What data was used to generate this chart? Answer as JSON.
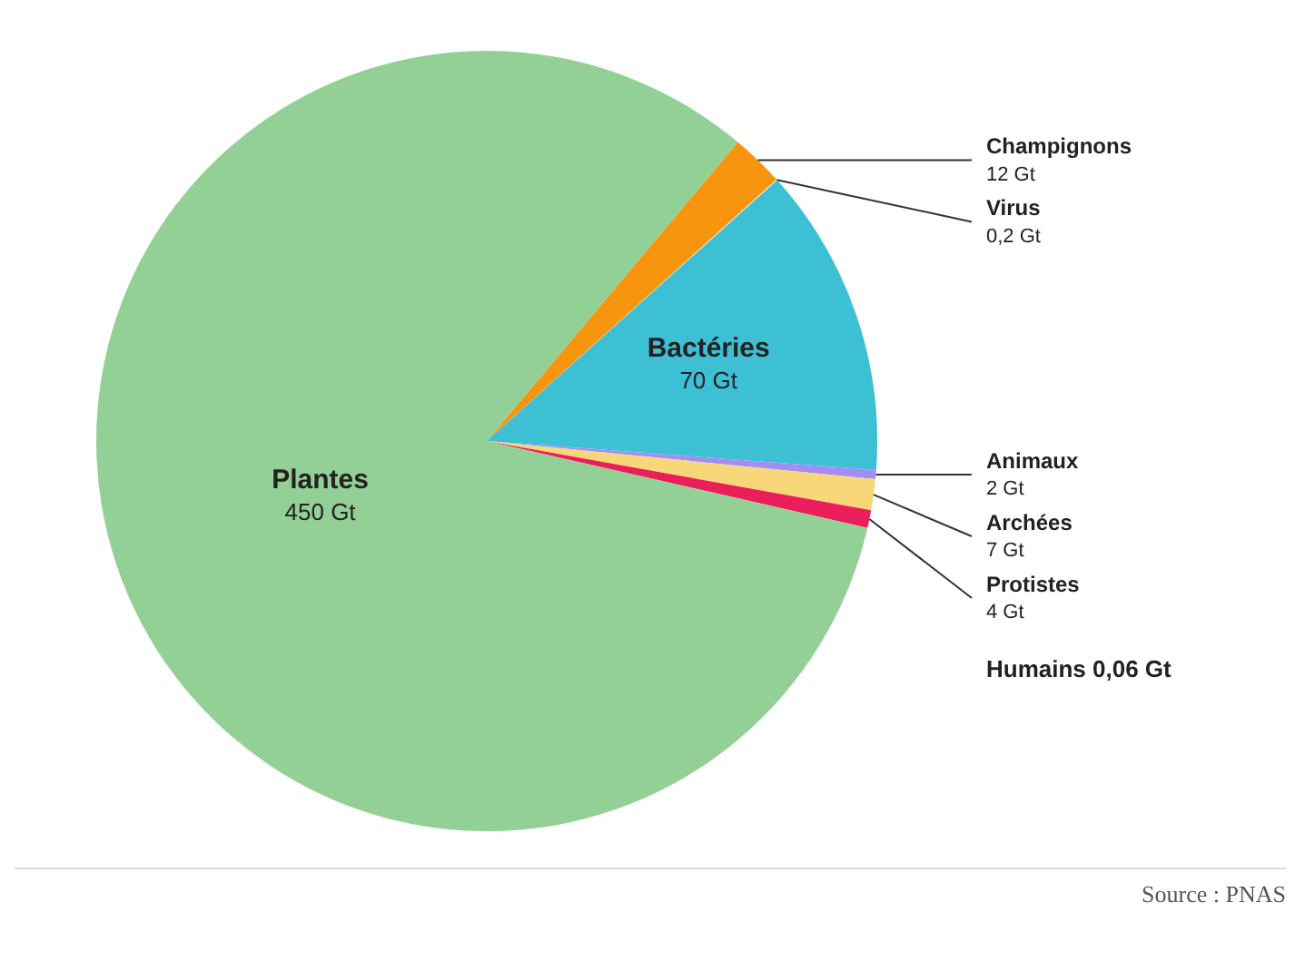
{
  "chart_data": {
    "type": "pie",
    "categories": [
      "Champignons",
      "Virus",
      "Bactéries",
      "Animaux",
      "Archées",
      "Protistes",
      "Plantes"
    ],
    "values": [
      12,
      0.2,
      70,
      2,
      7,
      4,
      450
    ],
    "value_labels": [
      "12 Gt",
      "0,2 Gt",
      "70 Gt",
      "2 Gt",
      "7 Gt",
      "4 Gt",
      "450 Gt"
    ],
    "colors": [
      "#f7960e",
      "#f2efd6",
      "#3ec0d4",
      "#a28df5",
      "#f8d778",
      "#ea1e5a",
      "#93d095"
    ],
    "legend": false,
    "annotations": [
      "Humains 0,06 Gt",
      "Source : PNAS"
    ]
  }
}
